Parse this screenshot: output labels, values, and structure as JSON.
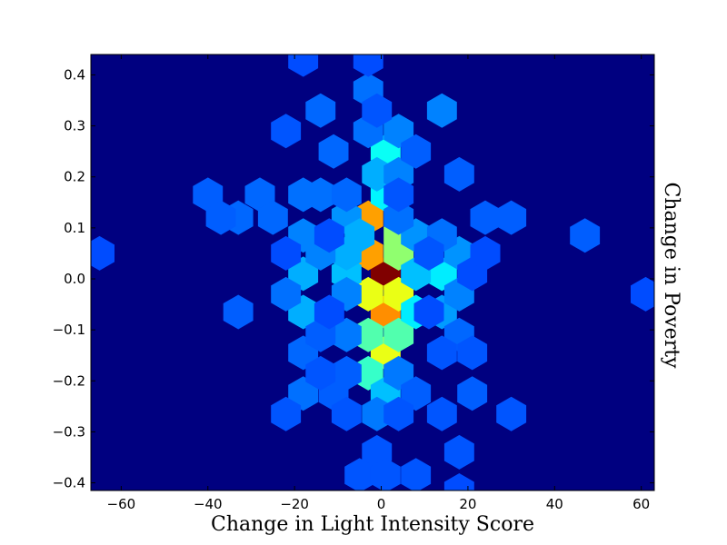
{
  "chart_data": {
    "type": "heatmap",
    "subtype": "hexbin",
    "title": "",
    "xlabel": "Change in Light Intensity Score",
    "ylabel": "Change in Poverty",
    "ylabel_position": "right",
    "xlim": [
      -67,
      63
    ],
    "ylim": [
      -0.415,
      0.44
    ],
    "xticks": [
      -60,
      -40,
      -20,
      0,
      20,
      40,
      60
    ],
    "xtick_labels": [
      "−60",
      "−40",
      "−20",
      "0",
      "20",
      "40",
      "60"
    ],
    "yticks": [
      -0.4,
      -0.3,
      -0.2,
      -0.1,
      0.0,
      0.1,
      0.2,
      0.3,
      0.4
    ],
    "ytick_labels": [
      "−0.4",
      "−0.3",
      "−0.2",
      "−0.1",
      "0.0",
      "0.1",
      "0.2",
      "0.3",
      "0.4"
    ],
    "grid": false,
    "colormap": "jet",
    "background_color": "#000080",
    "cells": [
      {
        "x": 1,
        "y": 0.01,
        "level": 1.0
      },
      {
        "x": 1,
        "y": -0.065,
        "level": 0.7
      },
      {
        "x": -3,
        "y": 0.12,
        "level": 0.68
      },
      {
        "x": -3,
        "y": 0.05,
        "level": 0.68
      },
      {
        "x": -3,
        "y": -0.03,
        "level": 0.55
      },
      {
        "x": 4,
        "y": -0.03,
        "level": 0.55
      },
      {
        "x": 1,
        "y": -0.145,
        "level": 0.55
      },
      {
        "x": 4,
        "y": 0.085,
        "level": 0.45
      },
      {
        "x": 4,
        "y": 0.05,
        "level": 0.45
      },
      {
        "x": -3,
        "y": -0.11,
        "level": 0.38
      },
      {
        "x": 4,
        "y": -0.11,
        "level": 0.38
      },
      {
        "x": -3,
        "y": -0.185,
        "level": 0.35
      },
      {
        "x": 1,
        "y": 0.25,
        "level": 0.3
      },
      {
        "x": 1,
        "y": 0.165,
        "level": 0.28
      },
      {
        "x": 8,
        "y": -0.065,
        "level": 0.27
      },
      {
        "x": 14,
        "y": 0.01,
        "level": 0.27
      },
      {
        "x": -8,
        "y": 0.01,
        "level": 0.22
      },
      {
        "x": 8,
        "y": 0.01,
        "level": 0.22
      },
      {
        "x": 1,
        "y": -0.225,
        "level": 0.22
      },
      {
        "x": -8,
        "y": 0.05,
        "level": 0.2
      },
      {
        "x": -1,
        "y": 0.205,
        "level": 0.2
      },
      {
        "x": -18,
        "y": 0.01,
        "level": 0.2
      },
      {
        "x": -18,
        "y": -0.065,
        "level": 0.2
      },
      {
        "x": 14,
        "y": -0.065,
        "level": 0.18
      },
      {
        "x": 18,
        "y": 0.05,
        "level": 0.17
      },
      {
        "x": -8,
        "y": 0.12,
        "level": 0.17
      },
      {
        "x": -5,
        "y": 0.085,
        "level": 0.2
      },
      {
        "x": 8,
        "y": 0.085,
        "level": 0.17
      },
      {
        "x": -18,
        "y": 0.085,
        "level": 0.15
      },
      {
        "x": 18,
        "y": -0.03,
        "level": 0.15
      },
      {
        "x": -14,
        "y": 0.05,
        "level": 0.15
      },
      {
        "x": -8,
        "y": -0.03,
        "level": 0.15
      },
      {
        "x": 4,
        "y": 0.205,
        "level": 0.15
      },
      {
        "x": 4,
        "y": 0.29,
        "level": 0.15
      },
      {
        "x": 14,
        "y": 0.33,
        "level": 0.15
      },
      {
        "x": 14,
        "y": 0.085,
        "level": 0.13
      },
      {
        "x": -8,
        "y": -0.11,
        "level": 0.14
      },
      {
        "x": 4,
        "y": -0.185,
        "level": 0.14
      },
      {
        "x": -1,
        "y": -0.265,
        "level": 0.14
      },
      {
        "x": 4,
        "y": 0.12,
        "level": 0.13
      },
      {
        "x": -3,
        "y": 0.29,
        "level": 0.13
      },
      {
        "x": -3,
        "y": 0.37,
        "level": 0.13
      },
      {
        "x": -18,
        "y": 0.165,
        "level": 0.13
      },
      {
        "x": -14,
        "y": 0.165,
        "level": 0.13
      },
      {
        "x": -18,
        "y": -0.225,
        "level": 0.13
      },
      {
        "x": -22,
        "y": -0.03,
        "level": 0.13
      },
      {
        "x": -18,
        "y": -0.145,
        "level": 0.12
      },
      {
        "x": 18,
        "y": -0.11,
        "level": 0.12
      },
      {
        "x": -14,
        "y": 0.33,
        "level": 0.12
      },
      {
        "x": -11,
        "y": 0.25,
        "level": 0.12
      },
      {
        "x": -8,
        "y": 0.165,
        "level": 0.12
      },
      {
        "x": -28,
        "y": 0.165,
        "level": 0.12
      },
      {
        "x": -25,
        "y": 0.12,
        "level": 0.12
      },
      {
        "x": -33,
        "y": 0.12,
        "level": 0.12
      },
      {
        "x": -40,
        "y": 0.165,
        "level": 0.11
      },
      {
        "x": -37,
        "y": 0.12,
        "level": 0.11
      },
      {
        "x": -33,
        "y": -0.065,
        "level": 0.11
      },
      {
        "x": 47,
        "y": 0.085,
        "level": 0.11
      },
      {
        "x": 30,
        "y": 0.12,
        "level": 0.11
      },
      {
        "x": 24,
        "y": 0.12,
        "level": 0.11
      },
      {
        "x": 18,
        "y": 0.205,
        "level": 0.11
      },
      {
        "x": 8,
        "y": 0.25,
        "level": 0.11
      },
      {
        "x": -8,
        "y": -0.185,
        "level": 0.11
      },
      {
        "x": -11,
        "y": -0.225,
        "level": 0.11
      },
      {
        "x": 8,
        "y": -0.225,
        "level": 0.11
      },
      {
        "x": 21,
        "y": -0.225,
        "level": 0.11
      },
      {
        "x": -14,
        "y": -0.11,
        "level": 0.11
      },
      {
        "x": -14,
        "y": -0.185,
        "level": 0.1
      },
      {
        "x": 14,
        "y": -0.145,
        "level": 0.1
      },
      {
        "x": 21,
        "y": -0.145,
        "level": 0.1
      },
      {
        "x": 14,
        "y": -0.265,
        "level": 0.1
      },
      {
        "x": 30,
        "y": -0.265,
        "level": 0.1
      },
      {
        "x": -22,
        "y": -0.265,
        "level": 0.1
      },
      {
        "x": -8,
        "y": -0.265,
        "level": 0.1
      },
      {
        "x": 4,
        "y": -0.265,
        "level": 0.1
      },
      {
        "x": -1,
        "y": -0.34,
        "level": 0.1
      },
      {
        "x": 8,
        "y": -0.385,
        "level": 0.1
      },
      {
        "x": 18,
        "y": -0.34,
        "level": 0.1
      },
      {
        "x": -5,
        "y": -0.385,
        "level": 0.1
      },
      {
        "x": 1,
        "y": -0.385,
        "level": 0.1
      },
      {
        "x": -1,
        "y": 0.33,
        "level": 0.1
      },
      {
        "x": -22,
        "y": 0.29,
        "level": 0.1
      },
      {
        "x": 4,
        "y": 0.165,
        "level": 0.1
      },
      {
        "x": 11,
        "y": 0.05,
        "level": 0.1
      },
      {
        "x": 21,
        "y": 0.01,
        "level": 0.09
      },
      {
        "x": 24,
        "y": 0.05,
        "level": 0.09
      },
      {
        "x": -12,
        "y": -0.065,
        "level": 0.09
      },
      {
        "x": -22,
        "y": 0.05,
        "level": 0.09
      },
      {
        "x": -12,
        "y": 0.085,
        "level": 0.09
      },
      {
        "x": -65,
        "y": 0.05,
        "level": 0.09
      },
      {
        "x": 61,
        "y": -0.03,
        "level": 0.09
      },
      {
        "x": -18,
        "y": 0.43,
        "level": 0.09
      },
      {
        "x": -3,
        "y": 0.43,
        "level": 0.09
      },
      {
        "x": 18,
        "y": -0.415,
        "level": 0.09
      },
      {
        "x": 11,
        "y": -0.065,
        "level": 0.09
      }
    ]
  }
}
